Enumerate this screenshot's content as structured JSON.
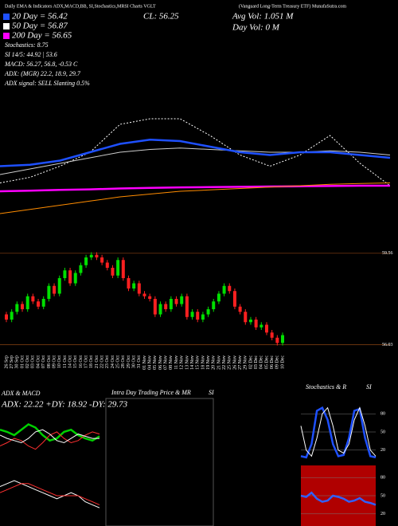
{
  "header": {
    "left_title": "Daily EMA & Indicators ADX,MACD,BB, SI,Stochastics,MRSI Charts VGLT",
    "right_title": "(Vanguard Long-Term Treasury ETF) MunafaSutra.com",
    "close": "CL: 56.25",
    "avg_vol": "Avg Vol: 1.051 M",
    "day_vol": "Day Vol: 0   M",
    "stats": [
      "20 Day = 56.42",
      "50 Day = 56.87",
      "200 Day = 56.65",
      "Stochastics: 8.75",
      "SI 14/5: 44.92 | 53.6",
      "MACD: 56.27, 56.8, -0.53 C",
      "ADX: (MGR) 22.2, 18.9, 29.7",
      "ADX  signal: SELL Slanting 0.5%"
    ],
    "intraday_title": "Intra  Day Trading Price  & MR",
    "intraday_sub": "SI"
  },
  "chart_data": [
    {
      "type": "line",
      "ylim": [
        55,
        61
      ],
      "series": [
        {
          "color": "#ffffff",
          "dash": true,
          "values": [
            57.3,
            57.5,
            57.9,
            58.4,
            59.4,
            59.6,
            59.6,
            59.0,
            58.3,
            57.9,
            58.3,
            59.0,
            58.0,
            57.2
          ]
        },
        {
          "color": "#cccccc",
          "values": [
            57.6,
            57.8,
            58.0,
            58.2,
            58.4,
            58.5,
            58.55,
            58.5,
            58.45,
            58.4,
            58.4,
            58.45,
            58.4,
            58.3
          ]
        },
        {
          "color": "#1e50ff",
          "bold": true,
          "values": [
            57.9,
            57.95,
            58.1,
            58.4,
            58.7,
            58.85,
            58.8,
            58.6,
            58.4,
            58.3,
            58.4,
            58.4,
            58.3,
            58.2
          ]
        },
        {
          "color": "#ff00ff",
          "bold": true,
          "values": [
            57.0,
            57.02,
            57.05,
            57.07,
            57.1,
            57.12,
            57.14,
            57.15,
            57.16,
            57.17,
            57.18,
            57.19,
            57.2,
            57.2
          ]
        },
        {
          "color": "#ff8c00",
          "values": [
            56.2,
            56.35,
            56.5,
            56.65,
            56.8,
            56.9,
            57.0,
            57.05,
            57.1,
            57.15,
            57.2,
            57.25,
            57.28,
            57.3
          ]
        }
      ]
    },
    {
      "type": "candlestick",
      "up_color": "#00e000",
      "down_color": "#ff2020",
      "ylim": [
        55.8,
        59.8
      ],
      "yticks": [
        59.56,
        56.03
      ],
      "grid": true,
      "categories": [
        "26 Sep",
        "27 Sep",
        "30 Sep",
        "01 Oct",
        "02 Oct",
        "03 Oct",
        "04 Oct",
        "07 Oct",
        "08 Oct",
        "09 Oct",
        "10 Oct",
        "11 Oct",
        "14 Oct",
        "15 Oct",
        "16 Oct",
        "17 Oct",
        "18 Oct",
        "21 Oct",
        "22 Oct",
        "23 Oct",
        "24 Oct",
        "25 Oct",
        "28 Oct",
        "29 Oct",
        "30 Oct",
        "31 Oct",
        "01 Nov",
        "04 Nov",
        "05 Nov",
        "06 Nov",
        "07 Nov",
        "08 Nov",
        "11 Nov",
        "12 Nov",
        "13 Nov",
        "14 Nov",
        "15 Nov",
        "18 Nov",
        "19 Nov",
        "20 Nov",
        "21 Nov",
        "22 Nov",
        "25 Nov",
        "26 Nov",
        "27 Nov",
        "29 Nov",
        "02 Dec",
        "03 Dec",
        "04 Dec",
        "05 Dec",
        "06 Dec",
        "09 Dec",
        "10 Dec"
      ],
      "open": [
        57.2,
        57.0,
        57.3,
        57.6,
        57.4,
        57.9,
        57.7,
        57.5,
        57.8,
        58.3,
        58.0,
        58.6,
        58.9,
        58.4,
        58.8,
        59.1,
        59.4,
        59.5,
        59.4,
        59.2,
        59.0,
        58.7,
        59.3,
        58.6,
        58.2,
        58.4,
        58.0,
        57.9,
        57.8,
        57.2,
        57.6,
        57.4,
        57.8,
        57.6,
        57.9,
        57.1,
        57.3,
        57.0,
        57.2,
        57.4,
        57.7,
        58.0,
        58.3,
        58.1,
        57.5,
        57.3,
        56.9,
        57.0,
        56.7,
        56.8,
        56.5,
        56.3,
        56.1
      ],
      "high": [
        57.3,
        57.4,
        57.7,
        57.7,
        58.0,
        58.0,
        57.8,
        57.9,
        58.4,
        58.4,
        58.7,
        59.0,
        59.0,
        58.9,
        59.2,
        59.5,
        59.6,
        59.6,
        59.5,
        59.3,
        59.1,
        59.4,
        59.4,
        58.7,
        58.5,
        58.5,
        58.1,
        58.0,
        57.9,
        57.7,
        57.7,
        57.9,
        57.9,
        58.0,
        58.0,
        57.4,
        57.4,
        57.3,
        57.5,
        57.8,
        58.1,
        58.4,
        58.4,
        58.2,
        57.6,
        57.4,
        57.1,
        57.1,
        56.9,
        56.9,
        56.6,
        56.4,
        56.5
      ],
      "low": [
        56.9,
        56.9,
        57.2,
        57.3,
        57.3,
        57.6,
        57.4,
        57.4,
        57.7,
        57.9,
        57.9,
        58.5,
        58.3,
        58.3,
        58.7,
        59.0,
        59.3,
        59.3,
        59.1,
        58.9,
        58.6,
        58.6,
        58.5,
        58.1,
        58.1,
        57.9,
        57.8,
        57.7,
        57.1,
        57.1,
        57.3,
        57.3,
        57.5,
        57.5,
        57.0,
        57.0,
        56.9,
        56.9,
        57.1,
        57.3,
        57.6,
        57.9,
        58.0,
        57.4,
        57.2,
        56.8,
        56.8,
        56.6,
        56.6,
        56.4,
        56.2,
        56.0,
        56.0
      ],
      "close": [
        57.0,
        57.3,
        57.6,
        57.4,
        57.9,
        57.7,
        57.5,
        57.8,
        58.3,
        58.0,
        58.6,
        58.9,
        58.4,
        58.8,
        59.1,
        59.4,
        59.5,
        59.4,
        59.2,
        59.0,
        58.7,
        59.3,
        58.6,
        58.2,
        58.4,
        58.0,
        57.9,
        57.8,
        57.2,
        57.6,
        57.4,
        57.8,
        57.6,
        57.9,
        57.1,
        57.3,
        57.0,
        57.2,
        57.4,
        57.7,
        58.0,
        58.3,
        58.1,
        57.5,
        57.3,
        56.9,
        57.0,
        56.7,
        56.8,
        56.5,
        56.3,
        56.1,
        56.4
      ]
    },
    {
      "type": "line",
      "title": "ADX  & MACD",
      "subtitle": "ADX: 22.22  +DY: 18.92  -DY: 29.73",
      "ylim": [
        0,
        50
      ],
      "series": [
        {
          "color": "#00d000",
          "bold": true,
          "values": [
            30,
            28,
            25,
            30,
            35,
            32,
            25,
            20,
            22,
            28,
            30,
            25,
            22,
            20,
            24
          ]
        },
        {
          "color": "#ff3030",
          "values": [
            15,
            18,
            22,
            20,
            15,
            12,
            18,
            25,
            28,
            22,
            18,
            20,
            25,
            28,
            26
          ]
        },
        {
          "color": "#ffffff",
          "values": [
            25,
            22,
            20,
            18,
            22,
            28,
            30,
            26,
            20,
            18,
            22,
            26,
            24,
            22,
            22
          ]
        }
      ]
    },
    {
      "type": "line",
      "ylim": [
        -1,
        1
      ],
      "series": [
        {
          "color": "#ffffff",
          "values": [
            0.3,
            0.4,
            0.5,
            0.4,
            0.3,
            0.2,
            0.1,
            0.0,
            -0.1,
            0.0,
            0.1,
            0.0,
            -0.2,
            -0.3,
            -0.4
          ]
        },
        {
          "color": "#ff3030",
          "values": [
            0.1,
            0.2,
            0.3,
            0.4,
            0.4,
            0.3,
            0.2,
            0.1,
            0.0,
            0.0,
            0.0,
            0.0,
            -0.1,
            -0.2,
            -0.3
          ]
        }
      ]
    },
    {
      "type": "line",
      "title": "Stochastics & R",
      "subtitle": "SI",
      "ylim": [
        0,
        100
      ],
      "yticks": [
        20,
        50,
        80
      ],
      "series": [
        {
          "color": "#1e50ff",
          "bold": true,
          "values": [
            10,
            8,
            30,
            85,
            90,
            70,
            30,
            10,
            12,
            40,
            85,
            88,
            40,
            10,
            8
          ]
        },
        {
          "color": "#ffffff",
          "values": [
            60,
            20,
            10,
            40,
            80,
            90,
            60,
            20,
            15,
            30,
            70,
            90,
            60,
            20,
            10
          ]
        }
      ]
    },
    {
      "type": "line",
      "background": "#b00000",
      "ylim": [
        0,
        100
      ],
      "yticks": [
        20,
        50,
        80
      ],
      "series": [
        {
          "color": "#3060ff",
          "bold": true,
          "values": [
            50,
            48,
            55,
            45,
            40,
            42,
            50,
            48,
            45,
            40,
            42,
            46,
            40,
            38,
            35
          ]
        }
      ]
    }
  ]
}
